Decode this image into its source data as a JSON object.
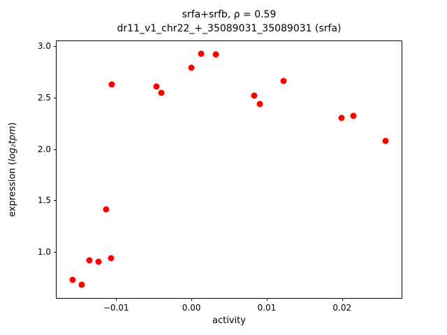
{
  "chart_data": {
    "type": "scatter",
    "title": "srfa+srfb, ρ = 0.59",
    "subtitle": "dr11_v1_chr22_+_35089031_35089031 (srfa)",
    "xlabel": "activity",
    "ylabel": "expression (log₂tpm)",
    "ylabel_parts": {
      "prefix": "expression (",
      "math": "log₂tpm",
      "suffix": ")"
    },
    "marker_color": "#ff0000",
    "axis_color": "#000000",
    "grid": false,
    "legend": false,
    "xlim": [
      -0.0179,
      0.0279
    ],
    "ylim": [
      0.55,
      3.05
    ],
    "xticks": {
      "values": [
        -0.01,
        0.0,
        0.01,
        0.02
      ],
      "labels": [
        "−0.01",
        "0.00",
        "0.01",
        "0.02"
      ]
    },
    "yticks": {
      "values": [
        1.0,
        1.5,
        2.0,
        2.5,
        3.0
      ],
      "labels": [
        "1.0",
        "1.5",
        "2.0",
        "2.5",
        "3.0"
      ]
    },
    "points": [
      [
        -0.0158,
        0.73
      ],
      [
        -0.0146,
        0.68
      ],
      [
        -0.0135,
        0.92
      ],
      [
        -0.0123,
        0.9
      ],
      [
        -0.0113,
        1.41
      ],
      [
        -0.0107,
        0.94
      ],
      [
        -0.0106,
        2.63
      ],
      [
        -0.0046,
        2.61
      ],
      [
        -0.004,
        2.55
      ],
      [
        0.0,
        2.79
      ],
      [
        0.0013,
        2.93
      ],
      [
        0.0032,
        2.92
      ],
      [
        0.0083,
        2.52
      ],
      [
        0.0091,
        2.44
      ],
      [
        0.0122,
        2.66
      ],
      [
        0.0199,
        2.3
      ],
      [
        0.0215,
        2.32
      ],
      [
        0.0258,
        2.08
      ]
    ]
  }
}
